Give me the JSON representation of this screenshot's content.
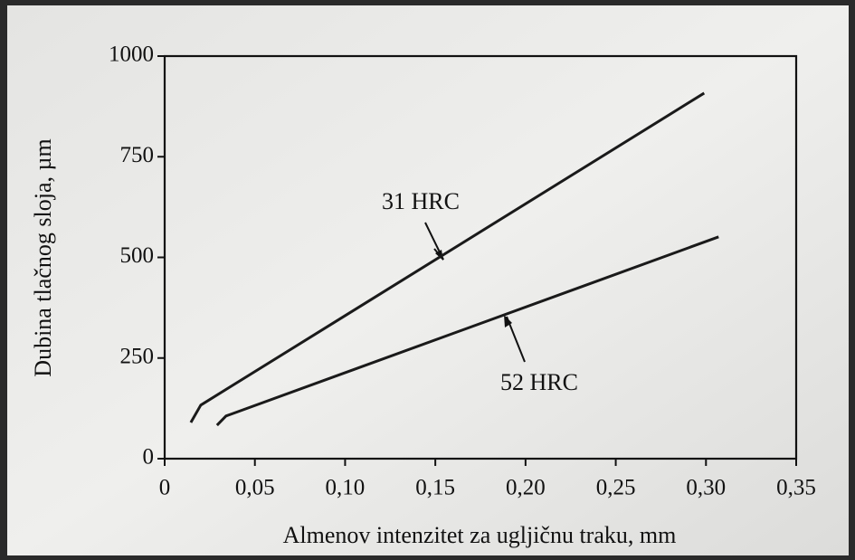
{
  "chart_data": {
    "type": "line",
    "x_label": "Almenov intenzitet za ugljičnu traku, mm",
    "y_label": "Dubina tlačnog sloja, µm",
    "series": [
      {
        "name": "31 HRC",
        "color": "#1a1a1a",
        "x": [
          0.0145,
          0.02,
          0.299
        ],
        "values": [
          90,
          133,
          908
        ]
      },
      {
        "name": "52 HRC",
        "color": "#1a1a1a",
        "x": [
          0.029,
          0.034,
          0.307
        ],
        "values": [
          83,
          106,
          551
        ]
      }
    ],
    "xlim": [
      0,
      0.35
    ],
    "xticks": [
      0,
      {
        "value": 0.05,
        "label": "0,05"
      },
      {
        "value": 0.1,
        "label": "0,10"
      },
      {
        "value": 0.15,
        "label": "0,15"
      },
      {
        "value": 0.2,
        "label": "0,20"
      },
      {
        "value": 0.25,
        "label": "0,25"
      },
      {
        "value": 0.3,
        "label": "0,30"
      },
      {
        "value": 0.35,
        "label": "0,35"
      }
    ],
    "ylim": [
      0,
      1000
    ],
    "yticks": [
      0,
      250,
      500,
      750,
      1000
    ],
    "grid": false
  }
}
